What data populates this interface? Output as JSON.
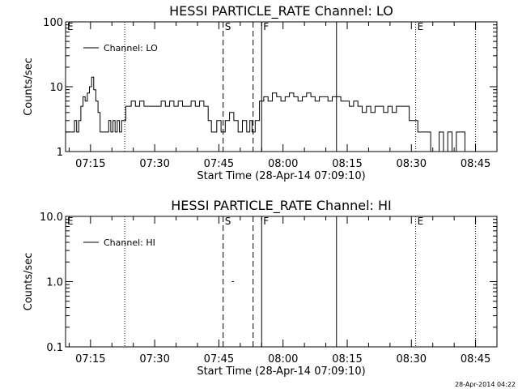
{
  "chart_data": [
    {
      "type": "line",
      "title": "HESSI PARTICLE_RATE Channel: LO",
      "xlabel": "Start Time (28-Apr-14 07:09:10)",
      "ylabel": "Counts/sec",
      "yscale": "log",
      "ylim": [
        1,
        100
      ],
      "xlim": [
        "07:09:10",
        "08:50:00"
      ],
      "y_tick_labels": [
        "1",
        "10",
        "100"
      ],
      "x_tick_labels": [
        "07:15",
        "07:30",
        "07:45",
        "08:00",
        "08:15",
        "08:30",
        "08:45"
      ],
      "legend": {
        "position": "top-left",
        "entries": [
          "Channel: LO"
        ]
      },
      "markers": [
        {
          "label": "E",
          "time": "07:09:10",
          "style": "none"
        },
        {
          "label": "",
          "time": "07:23:00",
          "style": "dotted"
        },
        {
          "label": "S",
          "time": "07:46:00",
          "style": "dashed"
        },
        {
          "label": "",
          "time": "07:53:00",
          "style": "dashed"
        },
        {
          "label": "F",
          "time": "07:55:00",
          "style": "solid"
        },
        {
          "label": "",
          "time": "08:12:30",
          "style": "solid"
        },
        {
          "label": "E",
          "time": "08:31:00",
          "style": "dotted"
        },
        {
          "label": "",
          "time": "08:45:00",
          "style": "dotted"
        }
      ],
      "series": [
        {
          "name": "Channel: LO",
          "x": [
            "07:09:10",
            "07:10:00",
            "07:11:00",
            "07:11:30",
            "07:12:00",
            "07:12:30",
            "07:13:00",
            "07:13:30",
            "07:14:00",
            "07:14:30",
            "07:15:00",
            "07:15:30",
            "07:16:00",
            "07:16:30",
            "07:17:00",
            "07:17:30",
            "07:18:00",
            "07:19:00",
            "07:19:30",
            "07:20:00",
            "07:20:30",
            "07:21:00",
            "07:21:30",
            "07:22:00",
            "07:22:30",
            "07:23:00",
            "07:23:30",
            "07:24:00",
            "07:25:00",
            "07:26:00",
            "07:27:00",
            "07:28:00",
            "07:29:00",
            "07:30:00",
            "07:31:00",
            "07:32:00",
            "07:33:00",
            "07:34:00",
            "07:35:00",
            "07:36:00",
            "07:37:00",
            "07:38:00",
            "07:39:00",
            "07:40:00",
            "07:41:00",
            "07:42:00",
            "07:43:00",
            "07:43:30",
            "07:44:00",
            "07:45:00",
            "07:46:00",
            "07:47:00",
            "07:48:00",
            "07:49:00",
            "07:50:00",
            "07:51:00",
            "07:52:00",
            "07:52:30",
            "07:53:00",
            "07:54:00",
            "07:55:00",
            "07:56:00",
            "07:57:00",
            "07:58:00",
            "07:59:00",
            "08:00:00",
            "08:01:00",
            "08:02:00",
            "08:03:00",
            "08:04:00",
            "08:05:00",
            "08:06:00",
            "08:07:00",
            "08:08:00",
            "08:09:00",
            "08:10:00",
            "08:11:00",
            "08:12:00",
            "08:13:00",
            "08:14:00",
            "08:15:00",
            "08:16:00",
            "08:17:00",
            "08:18:00",
            "08:19:00",
            "08:20:00",
            "08:21:00",
            "08:22:00",
            "08:23:00",
            "08:24:00",
            "08:25:00",
            "08:26:00",
            "08:27:00",
            "08:28:00",
            "08:29:00",
            "08:30:00",
            "08:31:00",
            "08:32:00",
            "08:33:00",
            "08:34:00",
            "08:35:00",
            "08:36:00",
            "08:37:00",
            "08:38:00",
            "08:39:00",
            "08:40:00",
            "08:41:00",
            "08:42:00",
            "08:43:00",
            "08:44:00",
            "08:45:00"
          ],
          "values": [
            2,
            2,
            2,
            3,
            2,
            3,
            5,
            7,
            6,
            8,
            10,
            14,
            9,
            6,
            4,
            2,
            2,
            2,
            3,
            2,
            3,
            2,
            3,
            2,
            3,
            3,
            5,
            5,
            6,
            5,
            6,
            5,
            5,
            5,
            5,
            6,
            5,
            6,
            5,
            6,
            5,
            5,
            6,
            5,
            6,
            5,
            3,
            2,
            2,
            3,
            2,
            3,
            4,
            3,
            2,
            3,
            2,
            3,
            2,
            3,
            6,
            7,
            6,
            8,
            7,
            6,
            7,
            8,
            7,
            6,
            7,
            8,
            7,
            6,
            7,
            7,
            6,
            7,
            7,
            6,
            6,
            5,
            6,
            5,
            4,
            5,
            4,
            5,
            5,
            4,
            5,
            4,
            5,
            5,
            5,
            3,
            3,
            2,
            2,
            2,
            1,
            1,
            2,
            1,
            2,
            1,
            2,
            2,
            1,
            1,
            1
          ]
        }
      ]
    },
    {
      "type": "line",
      "title": "HESSI PARTICLE_RATE Channel: HI",
      "xlabel": "Start Time (28-Apr-14 07:09:10)",
      "ylabel": "Counts/sec",
      "yscale": "log",
      "ylim": [
        0.1,
        10
      ],
      "xlim": [
        "07:09:10",
        "08:50:00"
      ],
      "y_tick_labels": [
        "0.1",
        "1.0",
        "10.0"
      ],
      "x_tick_labels": [
        "07:15",
        "07:30",
        "07:45",
        "08:00",
        "08:15",
        "08:30",
        "08:45"
      ],
      "legend": {
        "position": "top-left",
        "entries": [
          "Channel: HI"
        ]
      },
      "markers": [
        {
          "label": "E",
          "time": "07:09:10",
          "style": "none"
        },
        {
          "label": "",
          "time": "07:23:00",
          "style": "dotted"
        },
        {
          "label": "S",
          "time": "07:46:00",
          "style": "dashed"
        },
        {
          "label": "",
          "time": "07:53:00",
          "style": "dashed"
        },
        {
          "label": "F",
          "time": "07:55:00",
          "style": "solid"
        },
        {
          "label": "",
          "time": "08:12:30",
          "style": "solid"
        },
        {
          "label": "E",
          "time": "08:31:00",
          "style": "dotted"
        },
        {
          "label": "",
          "time": "08:45:00",
          "style": "dotted"
        }
      ],
      "series": [
        {
          "name": "Channel: HI",
          "x": [
            "07:48:00",
            "07:48:30"
          ],
          "values": [
            1.0,
            1.0
          ]
        }
      ]
    }
  ],
  "timestamp": "28-Apr-2014 04:22"
}
